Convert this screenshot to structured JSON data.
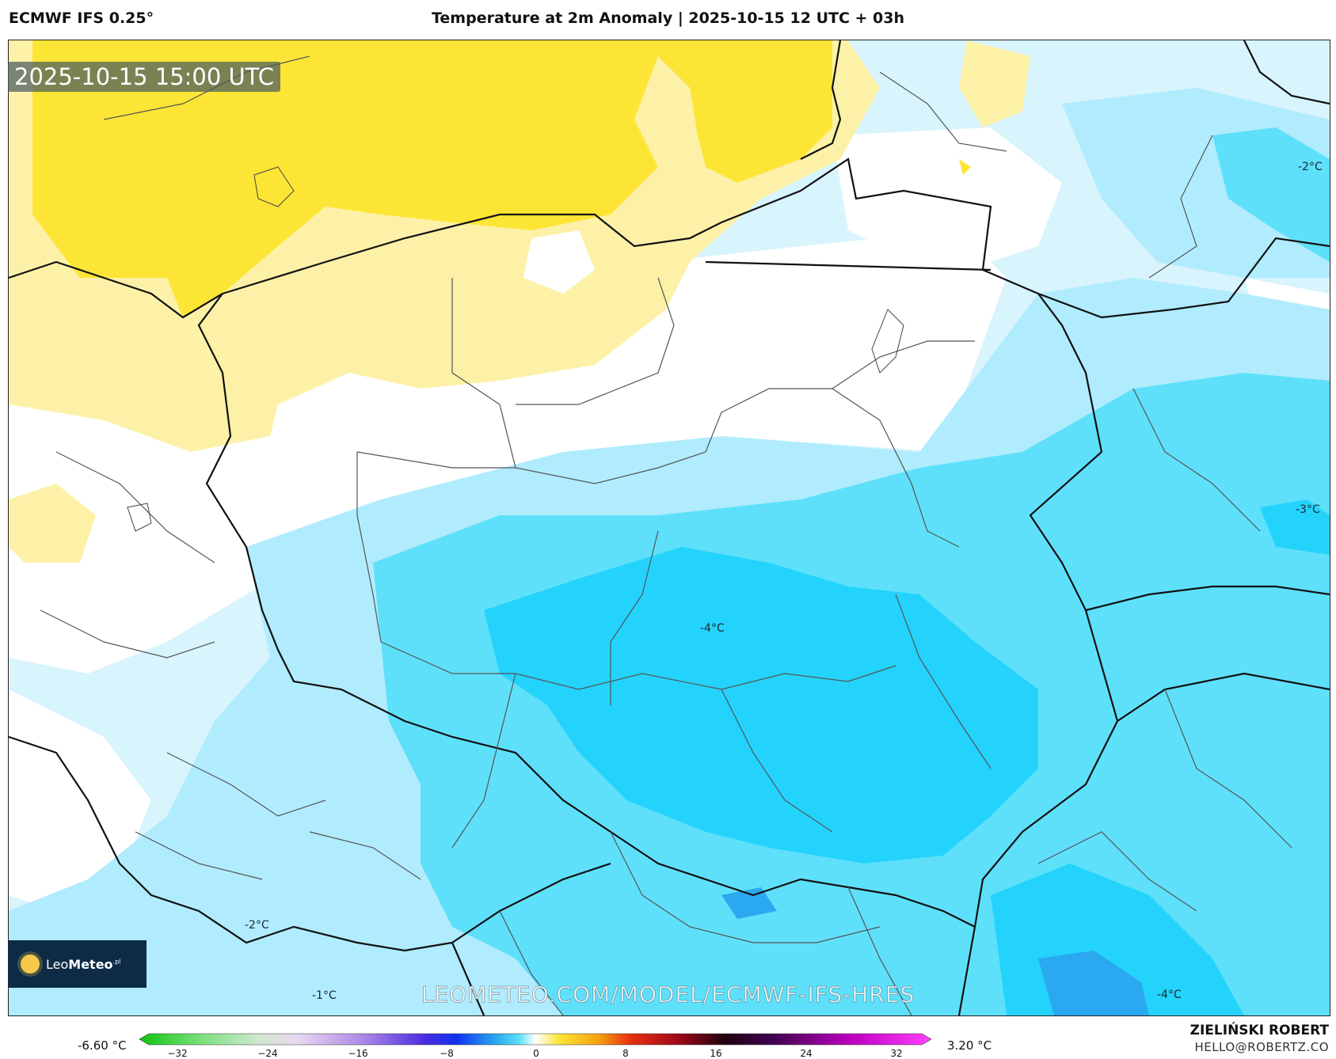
{
  "header": {
    "model_title": "ECMWF IFS 0.25°",
    "main_title": "Temperature at 2m Anomaly | 2025-10-15 12 UTC + 03h"
  },
  "map": {
    "timestamp": "2025-10-15 15:00 UTC",
    "watermark": "LEOMETEO.COM/MODEL/ECMWF-IFS-HRES",
    "contour_labels": [
      "-2°C",
      "-3°C",
      "-4°C",
      "-2°C",
      "-1°C",
      "-4°C"
    ],
    "colors": {
      "warm_strong": "#fde535",
      "warm_light": "#fdf1a8",
      "neutral": "#ffffff",
      "cool_pale": "#e8f6fd",
      "cool_light": "#b0ecfd",
      "cool_mid": "#5ee0fb",
      "cool_deep": "#23d3fb",
      "cool_strongest": "#2aa8f0"
    }
  },
  "logo": {
    "icon": "sun-icon",
    "text_light": "Leo",
    "text_bold": "Meteo",
    "text_suffix": ".pl"
  },
  "legend": {
    "min_label": "-6.60 °C",
    "max_label": "3.20 °C",
    "ticks": [
      "−32",
      "−24",
      "−16",
      "−8",
      "0",
      "8",
      "16",
      "24",
      "32"
    ]
  },
  "credits": {
    "author": "ZIELIŃSKI ROBERT",
    "email": "HELLO@ROBERTZ.CO"
  }
}
